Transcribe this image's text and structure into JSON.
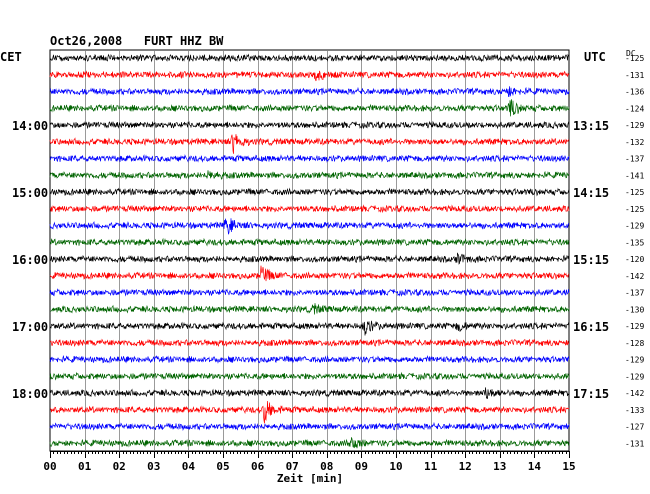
{
  "chart_data": {
    "type": "line",
    "title": "Oct26,2008   FURT HHZ BW",
    "left_axis_label": "CET",
    "right_axis_label": "UTC",
    "dc_label": "DC",
    "xlabel": "Zeit [min]",
    "xlim": [
      0,
      15
    ],
    "x_ticks": [
      "00",
      "01",
      "02",
      "03",
      "04",
      "05",
      "06",
      "07",
      "08",
      "09",
      "10",
      "11",
      "12",
      "13",
      "14",
      "15"
    ],
    "grid": true,
    "trace_colors": [
      "#000000",
      "#ff0000",
      "#0000ff",
      "#006400"
    ],
    "traces_per_hour": 4,
    "trace_interval_min": 15,
    "left_hour_labels": [
      {
        "label": "14:00",
        "trace_index": 4
      },
      {
        "label": "15:00",
        "trace_index": 8
      },
      {
        "label": "16:00",
        "trace_index": 12
      },
      {
        "label": "17:00",
        "trace_index": 16
      },
      {
        "label": "18:00",
        "trace_index": 20
      }
    ],
    "right_hour_labels": [
      {
        "label": "13:15",
        "trace_index": 4
      },
      {
        "label": "14:15",
        "trace_index": 8
      },
      {
        "label": "15:15",
        "trace_index": 12
      },
      {
        "label": "16:15",
        "trace_index": 16
      },
      {
        "label": "17:15",
        "trace_index": 20
      }
    ],
    "dc_offsets": [
      -125,
      -131,
      -136,
      -124,
      -129,
      -132,
      -137,
      -141,
      -125,
      -125,
      -129,
      -135,
      -120,
      -142,
      -137,
      -130,
      -129,
      -128,
      -129,
      -129,
      -142,
      -133,
      -127,
      -131
    ],
    "events": [
      {
        "trace_index": 1,
        "x_min": 7.7,
        "amp": 5
      },
      {
        "trace_index": 2,
        "x_min": 13.2,
        "amp": 5
      },
      {
        "trace_index": 3,
        "x_min": 13.3,
        "amp": 8
      },
      {
        "trace_index": 5,
        "x_min": 5.3,
        "amp": 10
      },
      {
        "trace_index": 7,
        "x_min": 4.6,
        "amp": 4
      },
      {
        "trace_index": 10,
        "x_min": 5.1,
        "amp": 9
      },
      {
        "trace_index": 12,
        "x_min": 11.8,
        "amp": 5
      },
      {
        "trace_index": 13,
        "x_min": 6.1,
        "amp": 9
      },
      {
        "trace_index": 15,
        "x_min": 7.6,
        "amp": 4
      },
      {
        "trace_index": 16,
        "x_min": 9.1,
        "amp": 7
      },
      {
        "trace_index": 16,
        "x_min": 11.8,
        "amp": 4
      },
      {
        "trace_index": 20,
        "x_min": 12.6,
        "amp": 5
      },
      {
        "trace_index": 21,
        "x_min": 6.2,
        "amp": 11
      },
      {
        "trace_index": 23,
        "x_min": 8.7,
        "amp": 6
      }
    ]
  }
}
